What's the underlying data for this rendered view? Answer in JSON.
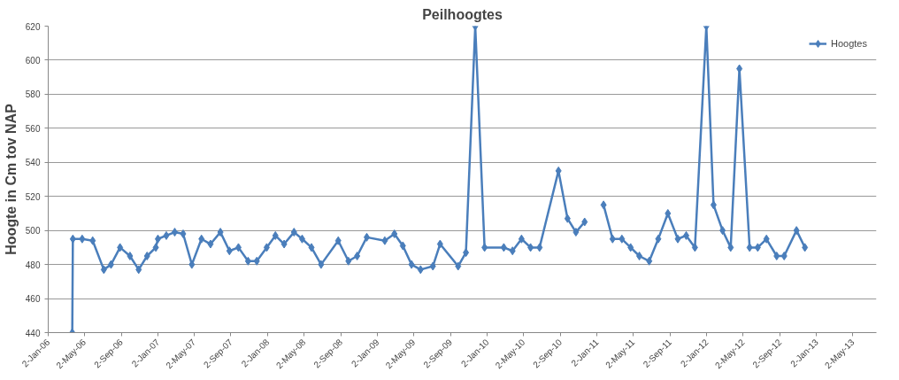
{
  "chart_data": {
    "type": "line",
    "title": "Peilhoogtes",
    "ylabel": "Hoogte in Cm tov NAP",
    "x": [
      "2006-03-23",
      "2006-03-25",
      "2006-04-25",
      "2006-05-30",
      "2006-07-06",
      "2006-07-30",
      "2006-08-29",
      "2006-10-01",
      "2006-10-30",
      "2006-11-27",
      "2006-12-26",
      "2007-01-02",
      "2007-01-30",
      "2007-02-27",
      "2007-03-27",
      "2007-04-25",
      "2007-05-27",
      "2007-06-26",
      "2007-07-29",
      "2007-08-28",
      "2007-09-27",
      "2007-10-29",
      "2007-11-27",
      "2007-12-30",
      "2008-01-28",
      "2008-02-26",
      "2008-03-30",
      "2008-04-26",
      "2008-05-27",
      "2008-06-28",
      "2008-08-24",
      "2008-09-27",
      "2008-10-26",
      "2008-11-27",
      "2009-01-26",
      "2009-02-27",
      "2009-03-27",
      "2009-04-25",
      "2009-05-25",
      "2009-07-05",
      "2009-07-29",
      "2009-09-27",
      "2009-10-23",
      "2009-11-23",
      "2009-12-24",
      "2010-02-26",
      "2010-03-27",
      "2010-04-26",
      "2010-05-26",
      "2010-06-25",
      "2010-08-27",
      "2010-09-26",
      "2010-10-24",
      "2010-11-22",
      "2010-12-23",
      "2011-01-24",
      "2011-02-23",
      "2011-03-26",
      "2011-04-24",
      "2011-05-23",
      "2011-06-25",
      "2011-07-25",
      "2011-08-26",
      "2011-09-28",
      "2011-10-26",
      "2011-11-24",
      "2012-01-01",
      "2012-01-25",
      "2012-02-24",
      "2012-03-22",
      "2012-04-20",
      "2012-05-24",
      "2012-06-20",
      "2012-07-19",
      "2012-08-22",
      "2012-09-16",
      "2012-10-27",
      "2012-11-24"
    ],
    "series": [
      {
        "name": "Hoogtes",
        "color": "#4a7ebb",
        "values": [
          440,
          495,
          495,
          494,
          477,
          480,
          490,
          485,
          477,
          485,
          490,
          495,
          497,
          499,
          498,
          480,
          495,
          492,
          499,
          488,
          490,
          482,
          482,
          490,
          497,
          492,
          499,
          495,
          490,
          480,
          494,
          482,
          485,
          496,
          494,
          498,
          491,
          480,
          477,
          479,
          492,
          479,
          487,
          620,
          490,
          490,
          488,
          495,
          490,
          490,
          535,
          507,
          499,
          505,
          null,
          515,
          495,
          495,
          490,
          485,
          482,
          495,
          510,
          495,
          497,
          490,
          620,
          515,
          500,
          490,
          595,
          490,
          490,
          495,
          485,
          485,
          500,
          490
        ]
      }
    ],
    "xlim": [
      "2006-01-02",
      "2013-07-20"
    ],
    "xticks": [
      {
        "value": "2006-01-02",
        "label": "2-Jan-06"
      },
      {
        "value": "2006-05-02",
        "label": "2-May-06"
      },
      {
        "value": "2006-09-02",
        "label": "2-Sep-06"
      },
      {
        "value": "2007-01-02",
        "label": "2-Jan-07"
      },
      {
        "value": "2007-05-02",
        "label": "2-May-07"
      },
      {
        "value": "2007-09-02",
        "label": "2-Sep-07"
      },
      {
        "value": "2008-01-02",
        "label": "2-Jan-08"
      },
      {
        "value": "2008-05-02",
        "label": "2-May-08"
      },
      {
        "value": "2008-09-02",
        "label": "2-Sep-08"
      },
      {
        "value": "2009-01-02",
        "label": "2-Jan-09"
      },
      {
        "value": "2009-05-02",
        "label": "2-May-09"
      },
      {
        "value": "2009-09-02",
        "label": "2-Sep-09"
      },
      {
        "value": "2010-01-02",
        "label": "2-Jan-10"
      },
      {
        "value": "2010-05-02",
        "label": "2-May-10"
      },
      {
        "value": "2010-09-02",
        "label": "2-Sep-10"
      },
      {
        "value": "2011-01-02",
        "label": "2-Jan-11"
      },
      {
        "value": "2011-05-02",
        "label": "2-May-11"
      },
      {
        "value": "2011-09-02",
        "label": "2-Sep-11"
      },
      {
        "value": "2012-01-02",
        "label": "2-Jan-12"
      },
      {
        "value": "2012-05-02",
        "label": "2-May-12"
      },
      {
        "value": "2012-09-02",
        "label": "2-Sep-12"
      },
      {
        "value": "2013-01-02",
        "label": "2-Jan-13"
      },
      {
        "value": "2013-05-02",
        "label": "2-May-13"
      }
    ],
    "ylim": [
      440,
      620
    ],
    "yticks": [
      440,
      460,
      480,
      500,
      520,
      540,
      560,
      580,
      600,
      620
    ],
    "grid": "y",
    "legend": "top right",
    "marker": "diamond",
    "line_style": "solid"
  }
}
